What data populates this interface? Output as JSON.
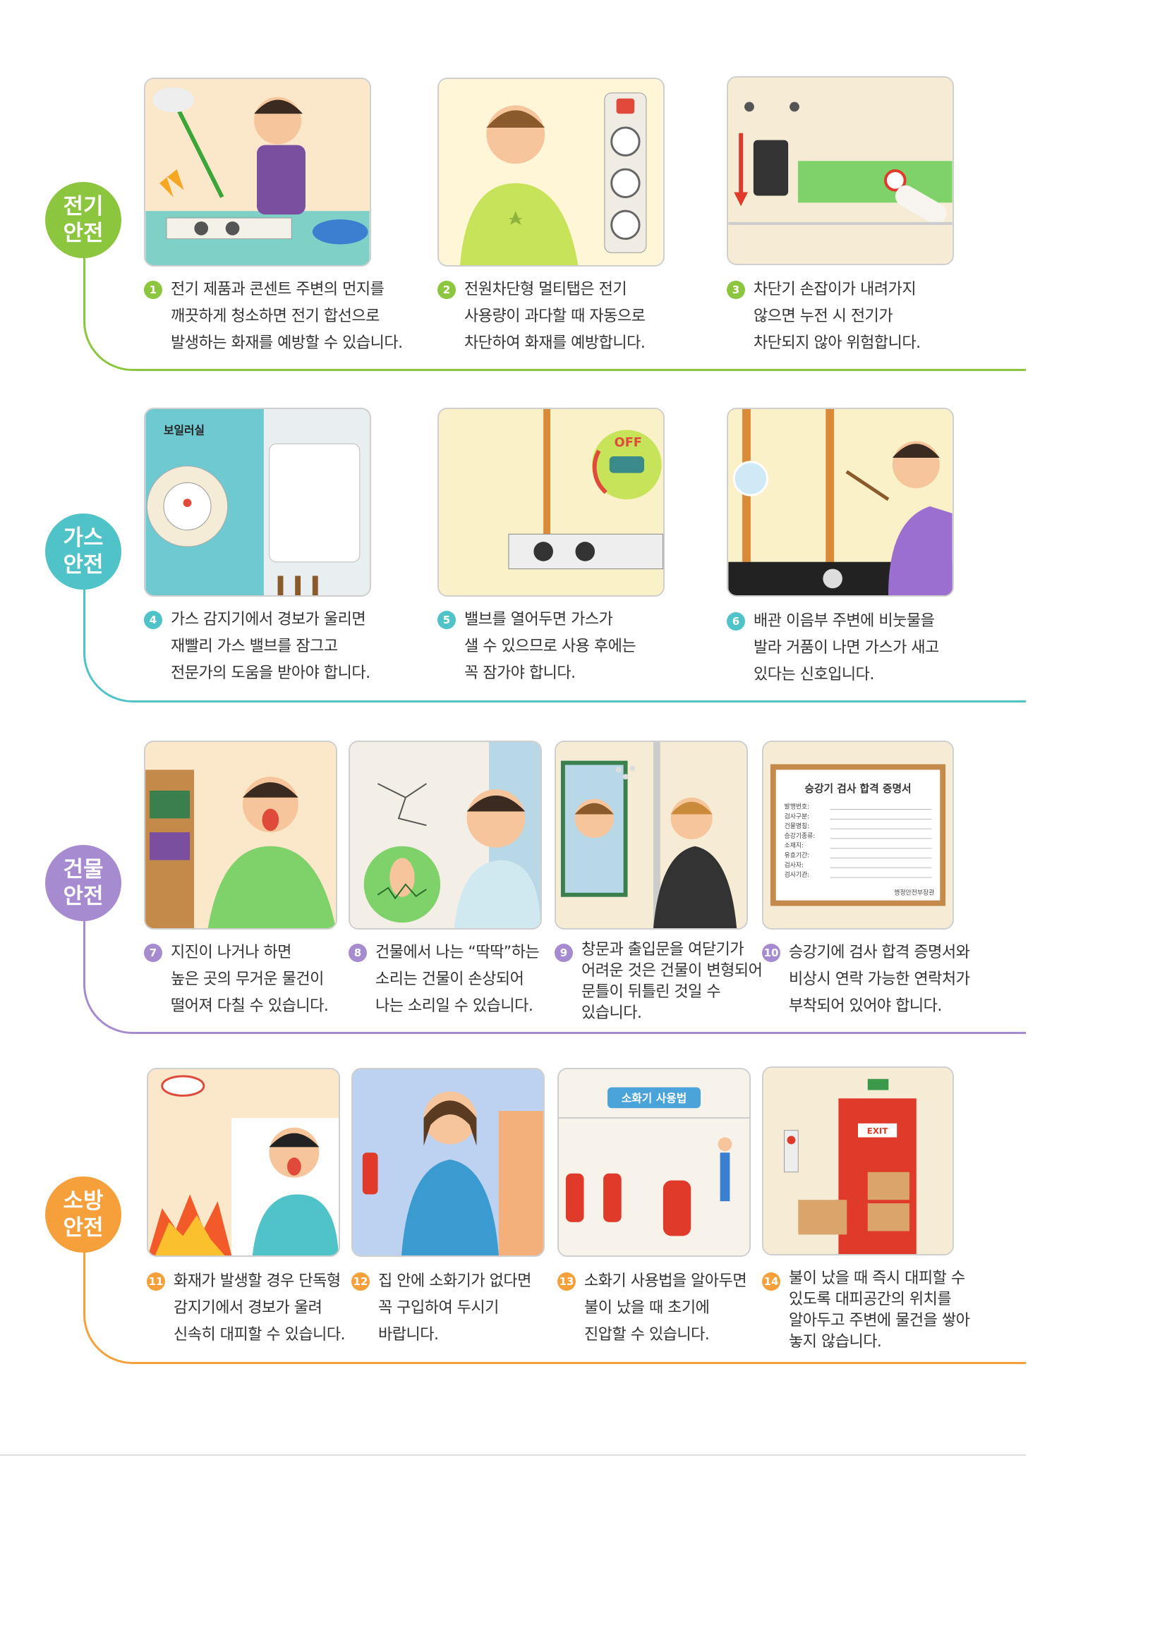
{
  "sections": [
    {
      "id": "electric",
      "badge": "전기\n안전",
      "color": "#8cc63f",
      "cards": [
        {
          "num": "1",
          "text": "전기 제품과 콘센트 주변의 먼지를\n깨끗하게  청소하면 전기 합선으로\n발생하는 화재를 예방할 수 있습니다."
        },
        {
          "num": "2",
          "text": "전원차단형 멀티탭은 전기\n사용량이 과다할 때 자동으로\n차단하여 화재를 예방합니다."
        },
        {
          "num": "3",
          "text": "차단기 손잡이가 내려가지\n않으면 누전 시 전기가\n차단되지 않아 위험합니다."
        }
      ]
    },
    {
      "id": "gas",
      "badge": "가스\n안전",
      "color": "#4fc3c7",
      "room_label": "보일러실",
      "valve_label": "OFF",
      "cards": [
        {
          "num": "4",
          "text": "가스 감지기에서 경보가 울리면\n재빨리 가스 밸브를 잠그고\n전문가의 도움을 받아야 합니다."
        },
        {
          "num": "5",
          "text": "밸브를 열어두면 가스가\n샐 수 있으므로 사용 후에는\n꼭 잠가야 합니다."
        },
        {
          "num": "6",
          "text": "배관 이음부 주변에 비눗물을\n발라 거품이 나면 가스가 새고\n있다는 신호입니다."
        }
      ]
    },
    {
      "id": "building",
      "badge": "건물\n안전",
      "color": "#a78bd0",
      "certificate": {
        "title": "승강기 검사 합격 증명서",
        "fields": [
          "발행번호:",
          "검사구분:",
          "건물명칭:",
          "승강기종류:",
          "소재지:",
          "유효기간:",
          "검사자:",
          "검사기관:"
        ],
        "issuer": "행정안전부장관"
      },
      "cards": [
        {
          "num": "7",
          "text": "지진이 나거나 하면\n높은 곳의 무거운 물건이\n떨어져 다칠 수 있습니다."
        },
        {
          "num": "8",
          "text": "건물에서 나는 “딱딱”하는\n소리는 건물이 손상되어\n나는 소리일 수 있습니다."
        },
        {
          "num": "9",
          "text": "창문과 출입문을 여닫기가\n어려운 것은 건물이 변형되어\n문틀이 뒤틀린 것일 수\n있습니다."
        },
        {
          "num": "10",
          "text": "승강기에 검사 합격 증명서와\n비상시 연락 가능한 연락처가\n부착되어 있어야 합니다."
        }
      ]
    },
    {
      "id": "fire",
      "badge": "소방\n안전",
      "color": "#f5a03a",
      "extinguisher_label": "소화기 사용법",
      "exit_label": "EXIT",
      "cards": [
        {
          "num": "11",
          "text": "화재가 발생할 경우 단독형\n감지기에서 경보가 울려\n신속히 대피할 수 있습니다."
        },
        {
          "num": "12",
          "text": "집 안에 소화기가 없다면\n꼭 구입하여 두시기\n바랍니다."
        },
        {
          "num": "13",
          "text": "소화기 사용법을 알아두면\n불이 났을 때 초기에\n진압할 수 있습니다."
        },
        {
          "num": "14",
          "text": "불이 났을 때 즉시 대피할 수\n있도록 대피공간의 위치를\n알아두고 주변에 물건을 쌓아\n놓지 않습니다."
        }
      ]
    }
  ]
}
